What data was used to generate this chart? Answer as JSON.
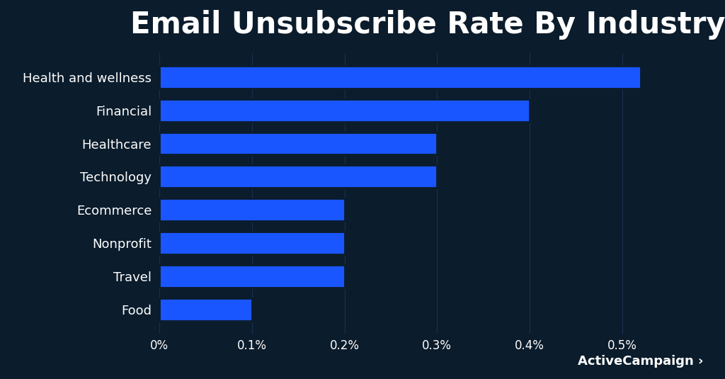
{
  "title": "Email Unsubscribe Rate By Industry",
  "categories": [
    "Health and wellness",
    "Financial",
    "Healthcare",
    "Technology",
    "Ecommerce",
    "Nonprofit",
    "Travel",
    "Food"
  ],
  "values": [
    0.52,
    0.4,
    0.3,
    0.3,
    0.2,
    0.2,
    0.2,
    0.1
  ],
  "bar_color": "#1a56ff",
  "background_color": "#0b1c2c",
  "text_color": "#ffffff",
  "title_fontsize": 30,
  "label_fontsize": 13,
  "tick_fontsize": 12,
  "xlim": [
    0,
    0.58
  ],
  "xtick_values": [
    0.0,
    0.1,
    0.2,
    0.3,
    0.4,
    0.5
  ],
  "xtick_labels": [
    "0%",
    "0.1%",
    "0.2%",
    "0.3%",
    "0.4%",
    "0.5%"
  ],
  "branding": "ActiveCampaign ›",
  "bar_height": 0.68,
  "grid_color": "#1a3050"
}
